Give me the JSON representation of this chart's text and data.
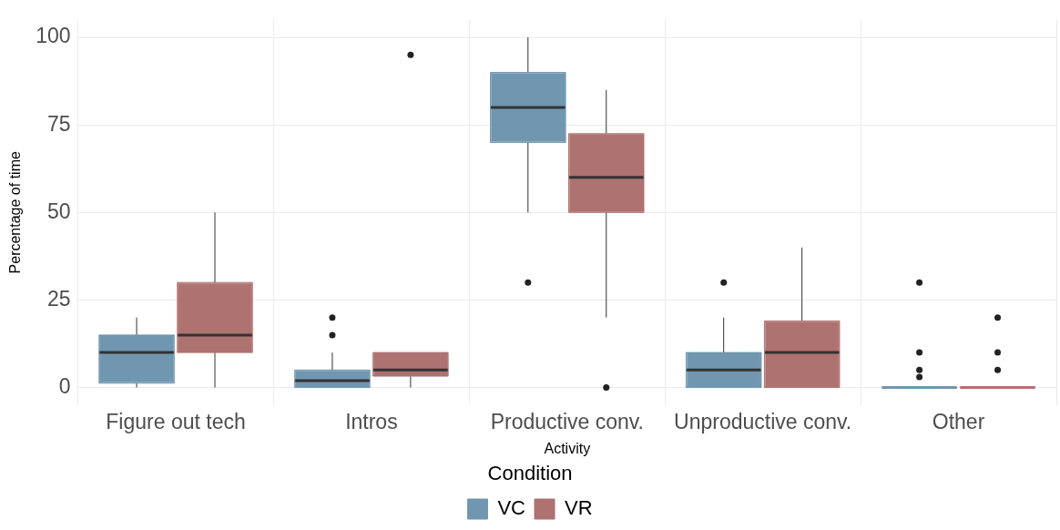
{
  "chart_data": {
    "type": "box",
    "xlabel": "Activity",
    "ylabel": "Percentage of time",
    "legend_title": "Condition",
    "legend": "bottom",
    "grid": true,
    "categories": [
      "Figure out tech",
      "Intros",
      "Productive conv.",
      "Unproductive conv.",
      "Other"
    ],
    "ylim": [
      -5,
      105
    ],
    "yticks": [
      0,
      25,
      50,
      75,
      100
    ],
    "series": [
      {
        "name": "VC",
        "color": "#7096b0",
        "boxes": [
          {
            "low": 0,
            "q1": 1.25,
            "median": 10,
            "q3": 15,
            "high": 20
          },
          {
            "low": 0,
            "q1": 0,
            "median": 2,
            "q3": 5,
            "high": 10,
            "outliers": [
              15,
              20
            ]
          },
          {
            "low": 50,
            "q1": 70,
            "median": 80,
            "q3": 90,
            "high": 100,
            "outliers": [
              30
            ]
          },
          {
            "low": 0,
            "q1": 0,
            "median": 5,
            "q3": 10,
            "high": 20,
            "outliers": [
              30
            ]
          },
          {
            "low": 0,
            "q1": 0,
            "median": 0,
            "q3": 0,
            "high": 0,
            "outliers": [
              3,
              5,
              10,
              30
            ]
          }
        ]
      },
      {
        "name": "VR",
        "color": "#ae7271",
        "boxes": [
          {
            "low": 0,
            "q1": 10,
            "median": 15,
            "q3": 30,
            "high": 50
          },
          {
            "low": 0,
            "q1": 3.25,
            "median": 5,
            "q3": 10,
            "high": 10,
            "outliers": [
              95
            ]
          },
          {
            "low": 20,
            "q1": 50,
            "median": 60,
            "q3": 72.5,
            "high": 85,
            "outliers": [
              0
            ]
          },
          {
            "low": 0,
            "q1": 0,
            "median": 10,
            "q3": 19,
            "high": 40
          },
          {
            "low": 0,
            "q1": 0,
            "median": 0,
            "q3": 0,
            "high": 0,
            "outliers": [
              5,
              10,
              20
            ]
          }
        ]
      }
    ]
  }
}
